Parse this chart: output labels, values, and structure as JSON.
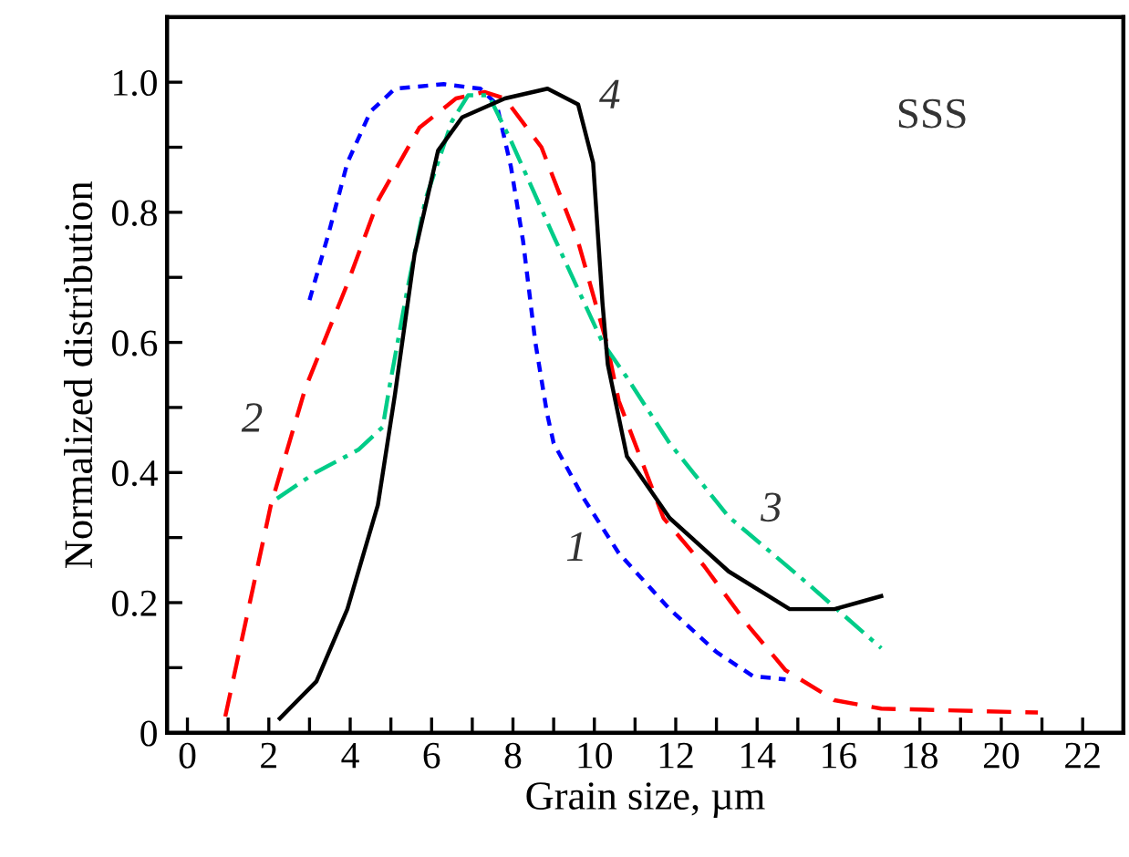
{
  "chart_data": {
    "type": "line",
    "xlabel": "Grain size, µm",
    "ylabel": "Normalized distribution",
    "xlim": [
      -0.5,
      23
    ],
    "ylim": [
      0,
      1.1
    ],
    "xticks": [
      0,
      {
        "value": 1,
        "label": null
      },
      2,
      {
        "value": 3,
        "label": null
      },
      4,
      {
        "value": 5,
        "label": null
      },
      6,
      {
        "value": 7,
        "label": null
      },
      8,
      {
        "value": 9,
        "label": null
      },
      10,
      {
        "value": 11,
        "label": null
      },
      12,
      {
        "value": 13,
        "label": null
      },
      14,
      {
        "value": 15,
        "label": null
      },
      16,
      {
        "value": 17,
        "label": null
      },
      18,
      {
        "value": 19,
        "label": null
      },
      20,
      {
        "value": 21,
        "label": null
      },
      22
    ],
    "yticks": [
      0,
      {
        "value": 0.1,
        "label": null
      },
      {
        "value": 0.2,
        "label": "0.2"
      },
      {
        "value": 0.3,
        "label": null
      },
      {
        "value": 0.4,
        "label": "0.4"
      },
      {
        "value": 0.5,
        "label": null
      },
      {
        "value": 0.6,
        "label": "0.6"
      },
      {
        "value": 0.7,
        "label": null
      },
      {
        "value": 0.8,
        "label": "0.8"
      },
      {
        "value": 0.9,
        "label": null
      },
      {
        "value": 1.0,
        "label": "1.0"
      }
    ],
    "grid": false,
    "legend": false,
    "marker": "none",
    "series": [
      {
        "name": "1",
        "color": "#0000ff",
        "line_style": "dotted",
        "x": [
          3.0,
          3.48,
          3.93,
          4.5,
          5.1,
          6.3,
          7.2,
          7.6,
          7.95,
          8.25,
          8.55,
          8.84,
          9.0,
          9.74,
          10.6,
          11.85,
          13.0,
          13.9,
          14.7
        ],
        "values": [
          0.665,
          0.77,
          0.876,
          0.955,
          0.99,
          0.997,
          0.99,
          0.966,
          0.87,
          0.755,
          0.6,
          0.49,
          0.445,
          0.36,
          0.276,
          0.19,
          0.124,
          0.087,
          0.082
        ]
      },
      {
        "name": "2",
        "color": "#ff0000",
        "line_style": "dashed",
        "x": [
          0.93,
          2.05,
          2.9,
          3.93,
          4.7,
          5.7,
          6.6,
          7.3,
          7.8,
          8.7,
          9.6,
          10.3,
          10.6,
          11.7,
          12.7,
          13.8,
          14.7,
          15.9,
          17.05,
          20.9
        ],
        "values": [
          0.025,
          0.35,
          0.53,
          0.69,
          0.82,
          0.93,
          0.975,
          0.985,
          0.975,
          0.9,
          0.755,
          0.6,
          0.51,
          0.33,
          0.256,
          0.163,
          0.096,
          0.05,
          0.037,
          0.031
        ]
      },
      {
        "name": "3",
        "color": "#00cc88",
        "line_style": "dashdot",
        "x": [
          2.2,
          3.15,
          4.2,
          4.8,
          4.96,
          5.4,
          5.85,
          6.5,
          6.9,
          7.4,
          7.95,
          9.0,
          10.2,
          10.8,
          11.85,
          13.3,
          15.1,
          17.05
        ],
        "values": [
          0.36,
          0.4,
          0.435,
          0.47,
          0.53,
          0.68,
          0.82,
          0.94,
          0.98,
          0.98,
          0.91,
          0.763,
          0.6,
          0.546,
          0.445,
          0.332,
          0.237,
          0.13
        ]
      },
      {
        "name": "4",
        "color": "#000000",
        "line_style": "solid",
        "x": [
          2.27,
          3.17,
          3.93,
          4.68,
          5.1,
          5.58,
          6.16,
          6.75,
          7.8,
          8.85,
          9.6,
          9.97,
          10.2,
          10.33,
          10.8,
          11.85,
          13.3,
          14.8,
          15.9,
          17.05
        ],
        "values": [
          0.022,
          0.079,
          0.19,
          0.35,
          0.52,
          0.735,
          0.895,
          0.946,
          0.975,
          0.99,
          0.966,
          0.876,
          0.66,
          0.566,
          0.425,
          0.33,
          0.248,
          0.19,
          0.19,
          0.21
        ]
      }
    ],
    "annotations": [
      "SSS"
    ]
  }
}
